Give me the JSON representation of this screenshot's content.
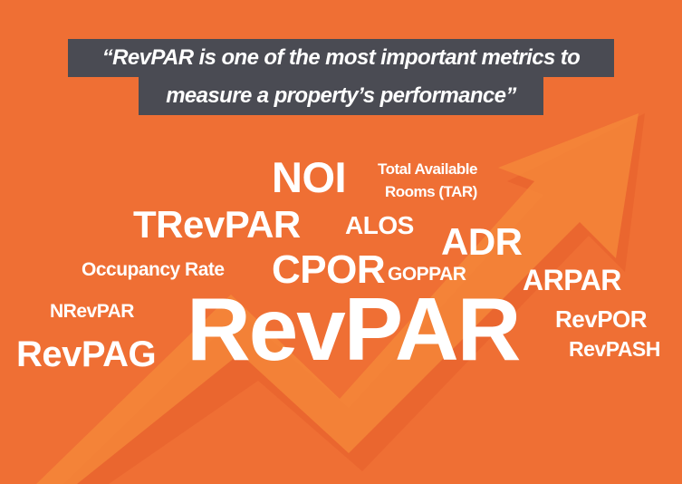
{
  "colors": {
    "background": "#ef6f34",
    "arrow": "#f5883a",
    "arrow_shadow": "#e8632e",
    "quote_box": "#4a4b53",
    "text": "#ffffff"
  },
  "quote": {
    "line1": "“RevPAR is one of the most important metrics to",
    "line2": "measure a property’s performance”"
  },
  "arrow_icon": "trend-up-arrow-icon",
  "words": {
    "noi": "NOI",
    "tar_line1": "Total Available",
    "tar_line2": "Rooms (TAR)",
    "trevpar": "TRevPAR",
    "alos": "ALOS",
    "adr": "ADR",
    "occupancy": "Occupancy Rate",
    "cpor": "CPOR",
    "goppar": "GOPPAR",
    "arpar": "ARPAR",
    "nrevpar": "NRevPAR",
    "revpar": "RevPAR",
    "revpor": "RevPOR",
    "revpag": "RevPAG",
    "revpash": "RevPASH"
  }
}
